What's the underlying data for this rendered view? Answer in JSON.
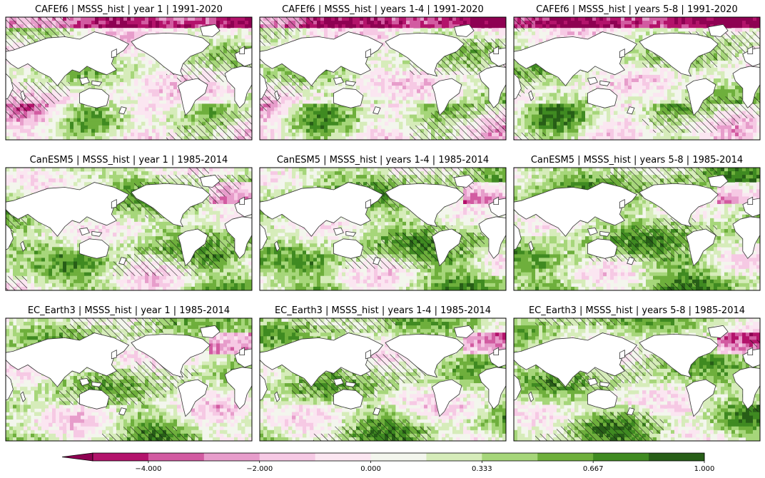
{
  "chart_data": {
    "type": "heatmap",
    "variable": "MSSS_hist",
    "panels": [
      {
        "title": "CAFEf6 | MSSS_hist | year 1 | 1991-2020",
        "model": "CAFEf6",
        "lead": "year 1",
        "period": "1991-2020"
      },
      {
        "title": "CAFEf6 | MSSS_hist | years 1-4 | 1991-2020",
        "model": "CAFEf6",
        "lead": "years 1-4",
        "period": "1991-2020"
      },
      {
        "title": "CAFEf6 | MSSS_hist | years 5-8 | 1991-2020",
        "model": "CAFEf6",
        "lead": "years 5-8",
        "period": "1991-2020"
      },
      {
        "title": "CanESM5 | MSSS_hist | year 1 | 1985-2014",
        "model": "CanESM5",
        "lead": "year 1",
        "period": "1985-2014"
      },
      {
        "title": "CanESM5 | MSSS_hist | years 1-4 | 1985-2014",
        "model": "CanESM5",
        "lead": "years 1-4",
        "period": "1985-2014"
      },
      {
        "title": "CanESM5 | MSSS_hist | years 5-8 | 1985-2014",
        "model": "CanESM5",
        "lead": "years 5-8",
        "period": "1985-2014"
      },
      {
        "title": "EC_Earth3 | MSSS_hist | year 1 | 1985-2014",
        "model": "EC_Earth3",
        "lead": "year 1",
        "period": "1985-2014"
      },
      {
        "title": "EC_Earth3 | MSSS_hist | years 1-4 | 1985-2014",
        "model": "EC_Earth3",
        "lead": "years 1-4",
        "period": "1985-2014"
      },
      {
        "title": "EC_Earth3 | MSSS_hist | years 5-8 | 1985-2014",
        "model": "EC_Earth3",
        "lead": "years 5-8",
        "period": "1985-2014"
      }
    ],
    "colorbar": {
      "orientation": "horizontal",
      "extend": "min",
      "ticks": [
        {
          "value": -4.0,
          "label": "−4.000"
        },
        {
          "value": -2.0,
          "label": "−2.000"
        },
        {
          "value": 0.0,
          "label": "0.000"
        },
        {
          "value": 0.333,
          "label": "0.333"
        },
        {
          "value": 0.667,
          "label": "0.667"
        },
        {
          "value": 1.0,
          "label": "1.000"
        }
      ],
      "colors": [
        "#8e0152",
        "#b3136b",
        "#d25ba1",
        "#e79dcb",
        "#f6c9e4",
        "#fbe6f1",
        "#f3f6ed",
        "#d6ecba",
        "#a6d67a",
        "#6eaf3c",
        "#3f8a21",
        "#275e17"
      ]
    },
    "hatching": "significance stippling (diagonal hatch)",
    "colors": {
      "land": "#ffffff",
      "coastline": "#333333",
      "frame": "#000000"
    }
  }
}
